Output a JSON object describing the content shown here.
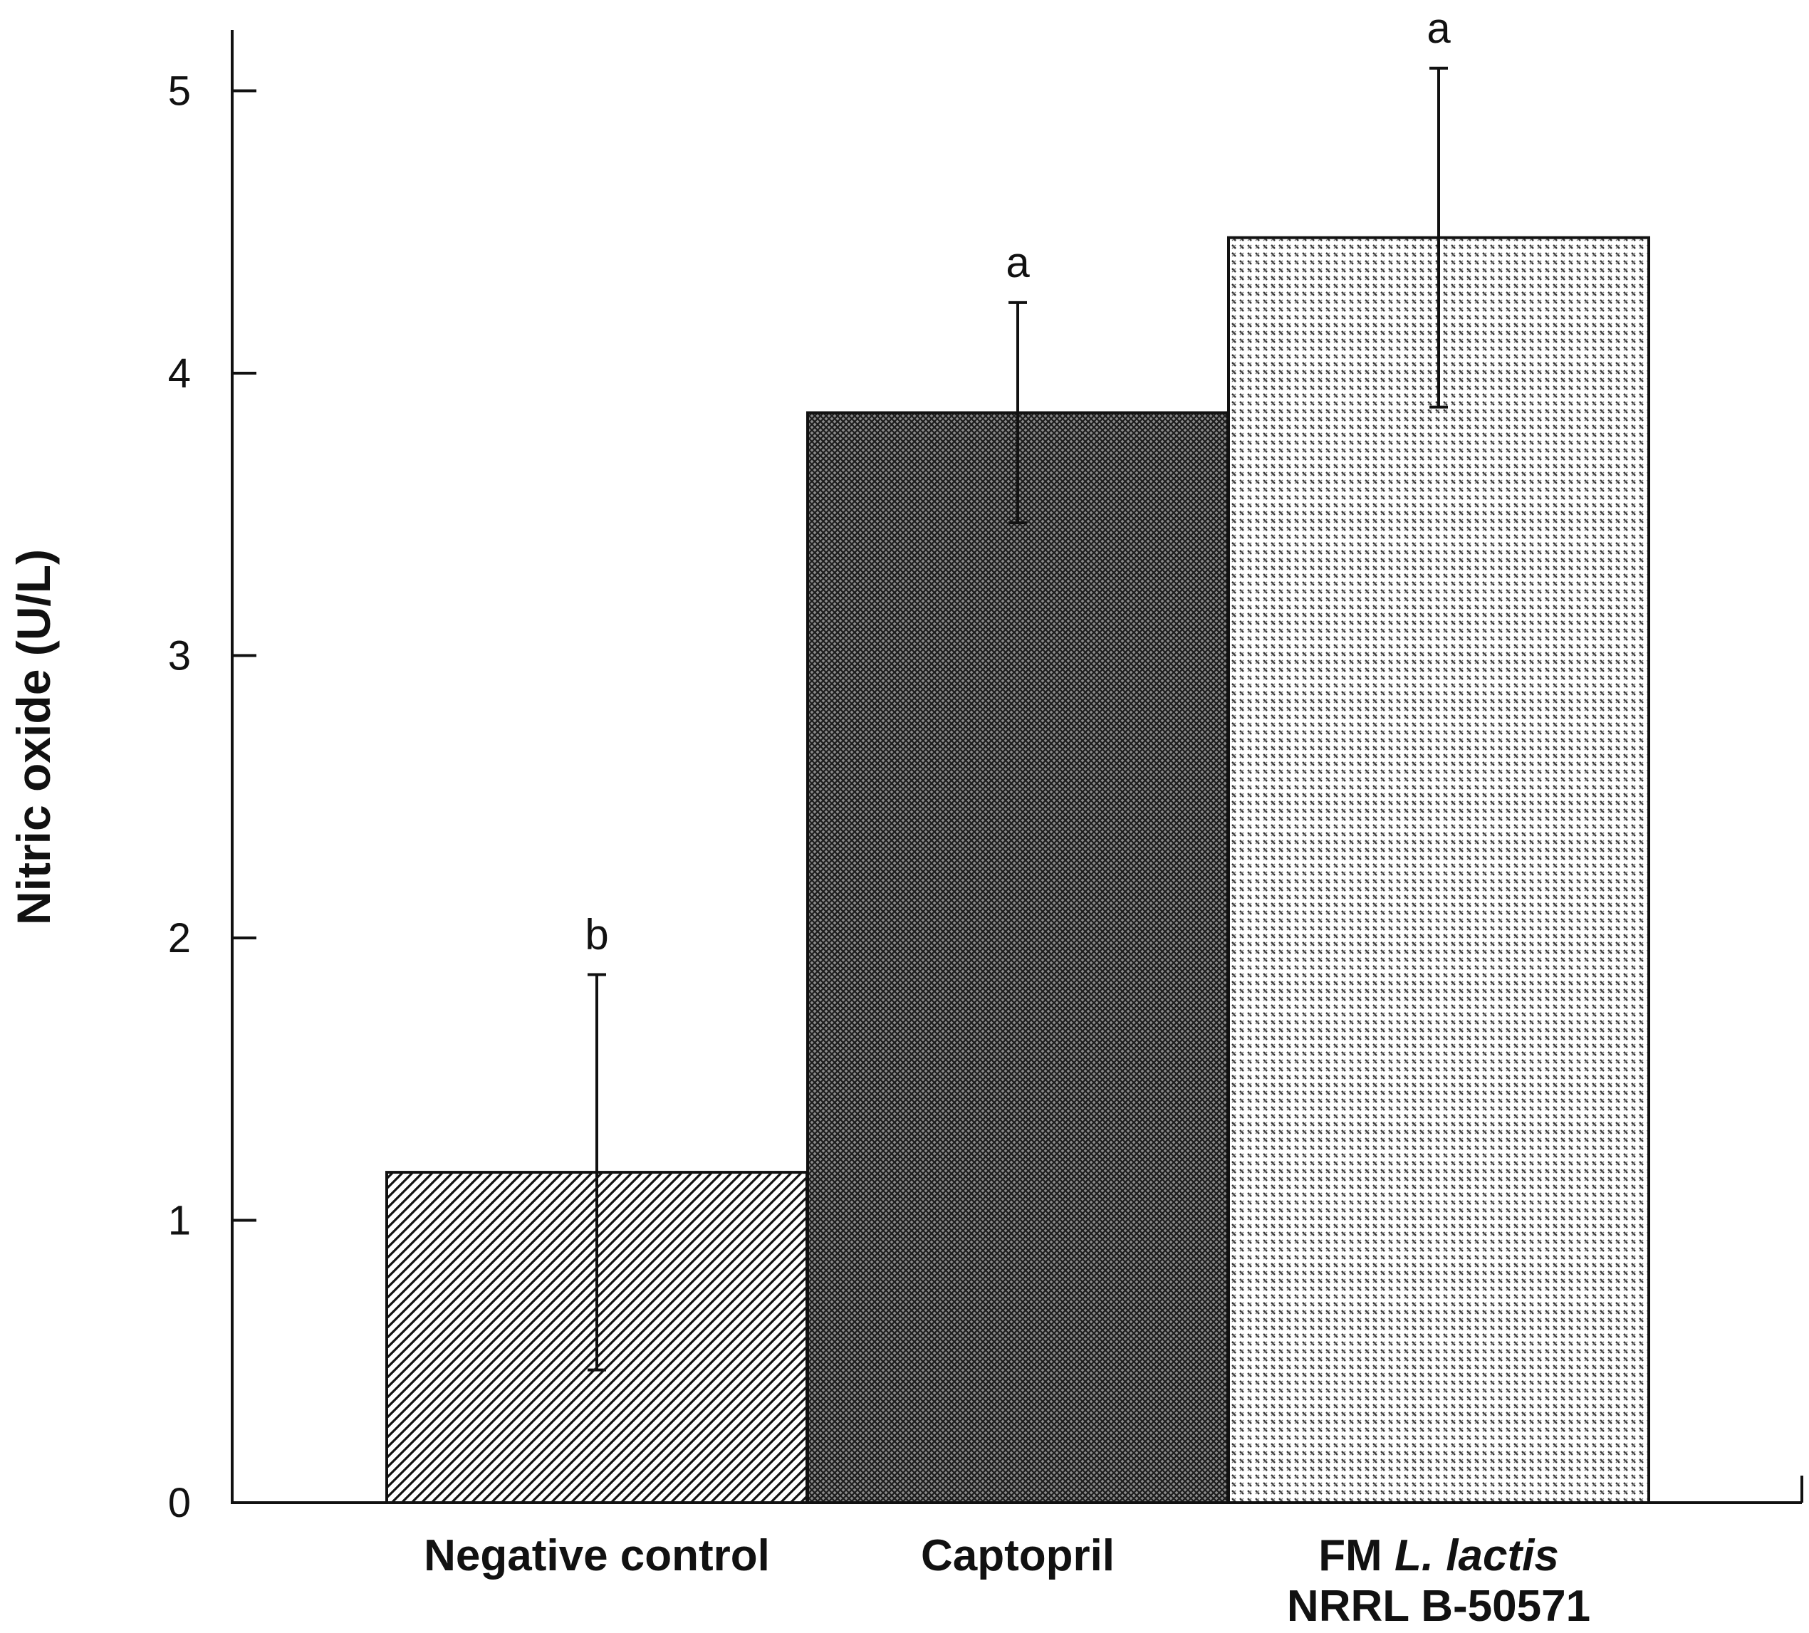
{
  "chart_data": {
    "type": "bar",
    "title": "",
    "xlabel": "",
    "ylabel": "Nitric oxide (U/L)",
    "ylim": [
      0,
      5.2
    ],
    "yticks": [
      0,
      1,
      2,
      3,
      4,
      5
    ],
    "grid": false,
    "categories": [
      {
        "lines": [
          "Negative control"
        ],
        "italic_part": ""
      },
      {
        "lines": [
          "Captopril"
        ],
        "italic_part": ""
      },
      {
        "lines": [
          "FM ",
          "NRRL B-50571"
        ],
        "italic_part": "L. lactis"
      }
    ],
    "values": [
      1.17,
      3.86,
      4.48
    ],
    "errors": [
      0.7,
      0.39,
      0.6
    ],
    "significance": [
      "b",
      "a",
      "a"
    ],
    "patterns": [
      "diagonal-hatch",
      "dense-crosshatch",
      "sparse-crosshatch"
    ]
  }
}
